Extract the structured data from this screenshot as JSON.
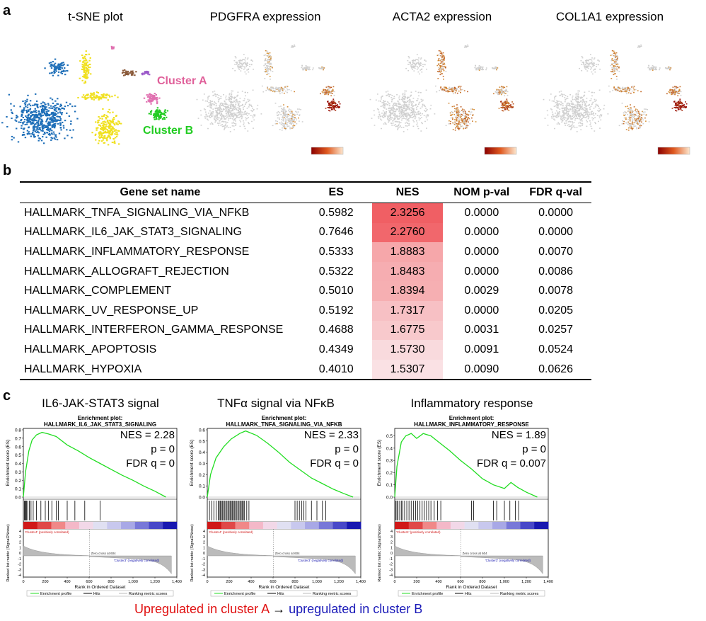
{
  "panels": {
    "a": "a",
    "b": "b",
    "c": "c"
  },
  "panel_a": {
    "titles": [
      "t-SNE plot",
      "PDGFRA expression",
      "ACTA2 expression",
      "COL1A1 expression"
    ],
    "cluster_a_label": "Cluster A",
    "cluster_b_label": "Cluster B",
    "colors": {
      "cluster_a": "#e0609a",
      "cluster_b": "#22cc22",
      "blue": "#1f6fb8",
      "yellow": "#f0e020",
      "brown": "#8a5a3a",
      "purple": "#9b59c9",
      "pink": "#e070b0"
    }
  },
  "panel_b": {
    "headers": [
      "Gene set name",
      "ES",
      "NES",
      "NOM p-val",
      "FDR q-val"
    ],
    "rows": [
      {
        "name": "HALLMARK_TNFA_SIGNALING_VIA_NFKB",
        "es": "0.5982",
        "nes": "2.3256",
        "p": "0.0000",
        "fdr": "0.0000",
        "nes_value": 2.3256
      },
      {
        "name": "HALLMARK_IL6_JAK_STAT3_SIGNALING",
        "es": "0.7646",
        "nes": "2.2760",
        "p": "0.0000",
        "fdr": "0.0000",
        "nes_value": 2.276
      },
      {
        "name": "HALLMARK_INFLAMMATORY_RESPONSE",
        "es": "0.5333",
        "nes": "1.8883",
        "p": "0.0000",
        "fdr": "0.0070",
        "nes_value": 1.8883
      },
      {
        "name": "HALLMARK_ALLOGRAFT_REJECTION",
        "es": "0.5322",
        "nes": "1.8483",
        "p": "0.0000",
        "fdr": "0.0086",
        "nes_value": 1.8483
      },
      {
        "name": "HALLMARK_COMPLEMENT",
        "es": "0.5010",
        "nes": "1.8394",
        "p": "0.0029",
        "fdr": "0.0078",
        "nes_value": 1.8394
      },
      {
        "name": "HALLMARK_UV_RESPONSE_UP",
        "es": "0.5192",
        "nes": "1.7317",
        "p": "0.0000",
        "fdr": "0.0205",
        "nes_value": 1.7317
      },
      {
        "name": "HALLMARK_INTERFERON_GAMMA_RESPONSE",
        "es": "0.4688",
        "nes": "1.6775",
        "p": "0.0031",
        "fdr": "0.0257",
        "nes_value": 1.6775
      },
      {
        "name": "HALLMARK_APOPTOSIS",
        "es": "0.4349",
        "nes": "1.5730",
        "p": "0.0091",
        "fdr": "0.0524",
        "nes_value": 1.573
      },
      {
        "name": "HALLMARK_HYPOXIA",
        "es": "0.4010",
        "nes": "1.5307",
        "p": "0.0090",
        "fdr": "0.0626",
        "nes_value": 1.5307
      }
    ]
  },
  "panel_c": {
    "plots": [
      {
        "title": "IL6-JAK-STAT3 signal",
        "enrich_title": "Enrichment plot:",
        "enrich_set": "HALLMARK_IL6_JAK_STAT3_SIGNALING",
        "nes": "NES = 2.28",
        "p": "p = 0",
        "fdr": "FDR q = 0",
        "yticks": [
          "0.8",
          "0.7",
          "0.6",
          "0.5",
          "0.4",
          "0.3",
          "0.2",
          "0.1",
          "0.0"
        ],
        "ymax": 0.8,
        "es_curve": [
          [
            0,
            0
          ],
          [
            20,
            0.3
          ],
          [
            50,
            0.55
          ],
          [
            80,
            0.68
          ],
          [
            120,
            0.74
          ],
          [
            170,
            0.77
          ],
          [
            230,
            0.75
          ],
          [
            300,
            0.72
          ],
          [
            400,
            0.62
          ],
          [
            500,
            0.55
          ],
          [
            600,
            0.47
          ],
          [
            700,
            0.4
          ],
          [
            800,
            0.33
          ],
          [
            900,
            0.26
          ],
          [
            1000,
            0.2
          ],
          [
            1100,
            0.13
          ],
          [
            1200,
            0.07
          ],
          [
            1300,
            0.0
          ]
        ],
        "hits": [
          10,
          15,
          22,
          30,
          40,
          55,
          70,
          90,
          120,
          160,
          200,
          230,
          260,
          300,
          320,
          400,
          470,
          560,
          700
        ]
      },
      {
        "title": "TNFα signal via NFκB",
        "enrich_title": "Enrichment plot:",
        "enrich_set": "HALLMARK_TNFA_SIGNALING_VIA_NFKB",
        "nes": "NES = 2.33",
        "p": "p = 0",
        "fdr": "FDR q = 0",
        "yticks": [
          "0.6",
          "0.5",
          "0.4",
          "0.3",
          "0.2",
          "0.1",
          "0.0"
        ],
        "ymax": 0.6,
        "es_curve": [
          [
            0,
            0
          ],
          [
            30,
            0.2
          ],
          [
            80,
            0.35
          ],
          [
            150,
            0.45
          ],
          [
            220,
            0.52
          ],
          [
            300,
            0.57
          ],
          [
            350,
            0.59
          ],
          [
            450,
            0.55
          ],
          [
            550,
            0.48
          ],
          [
            650,
            0.4
          ],
          [
            750,
            0.31
          ],
          [
            850,
            0.24
          ],
          [
            950,
            0.17
          ],
          [
            1050,
            0.12
          ],
          [
            1150,
            0.07
          ],
          [
            1250,
            0.03
          ],
          [
            1330,
            0.0
          ]
        ],
        "hits": [
          20,
          40,
          60,
          80,
          100,
          110,
          120,
          130,
          140,
          150,
          160,
          170,
          180,
          190,
          200,
          210,
          220,
          230,
          240,
          250,
          260,
          270,
          280,
          290,
          300,
          310,
          320,
          330,
          340,
          360,
          380,
          800,
          820,
          840,
          860,
          880,
          900,
          950,
          1000,
          1050,
          1080
        ]
      },
      {
        "title": "Inflammatory response",
        "enrich_title": "Enrichment plot:",
        "enrich_set": "HALLMARK_INFLAMMATORY_RESPONSE",
        "nes": "NES = 1.89",
        "p": "p = 0",
        "fdr": "FDR q = 0.007",
        "yticks": [
          "0.5",
          "0.4",
          "0.3",
          "0.2",
          "0.1",
          "0.0"
        ],
        "ymax": 0.55,
        "es_curve": [
          [
            0,
            0
          ],
          [
            20,
            0.25
          ],
          [
            60,
            0.45
          ],
          [
            100,
            0.5
          ],
          [
            150,
            0.52
          ],
          [
            200,
            0.48
          ],
          [
            260,
            0.52
          ],
          [
            330,
            0.5
          ],
          [
            400,
            0.45
          ],
          [
            500,
            0.38
          ],
          [
            600,
            0.3
          ],
          [
            700,
            0.23
          ],
          [
            800,
            0.15
          ],
          [
            900,
            0.1
          ],
          [
            1000,
            0.07
          ],
          [
            1060,
            0.12
          ],
          [
            1120,
            0.08
          ],
          [
            1200,
            0.04
          ],
          [
            1300,
            0.0
          ]
        ],
        "hits": [
          10,
          20,
          30,
          45,
          60,
          75,
          90,
          110,
          130,
          150,
          170,
          190,
          210,
          230,
          250,
          270,
          290,
          310,
          330,
          360,
          390,
          420,
          700,
          720,
          900,
          930,
          1000,
          1050,
          1100,
          1130
        ]
      }
    ],
    "ylabel_es": "Enrichment score (ES)",
    "ylabel_rank": "Ranked list metric (Signal2Noise)",
    "xlabel": "Rank in Ordered Dataset",
    "xticks": [
      "0",
      "200",
      "400",
      "600",
      "800",
      "1,000",
      "1,200",
      "1,400"
    ],
    "rank_yticks": [
      "4",
      "3",
      "2",
      "1",
      "0",
      "-1",
      "-2",
      "-3",
      "-4"
    ],
    "pos_label": "'Cluster4' (positively correlated)",
    "neg_label": "'Cluster3' (negatively correlated)",
    "zero_cross": "Zero cross at 604",
    "legend": [
      "Enrichment profile",
      "Hits",
      "Ranking metric scores"
    ]
  },
  "footer": {
    "left": "Upregulated in cluster A",
    "arrow": "→",
    "right": "upregulated in cluster B",
    "left_color": "#e01010",
    "right_color": "#1a1ab8"
  }
}
